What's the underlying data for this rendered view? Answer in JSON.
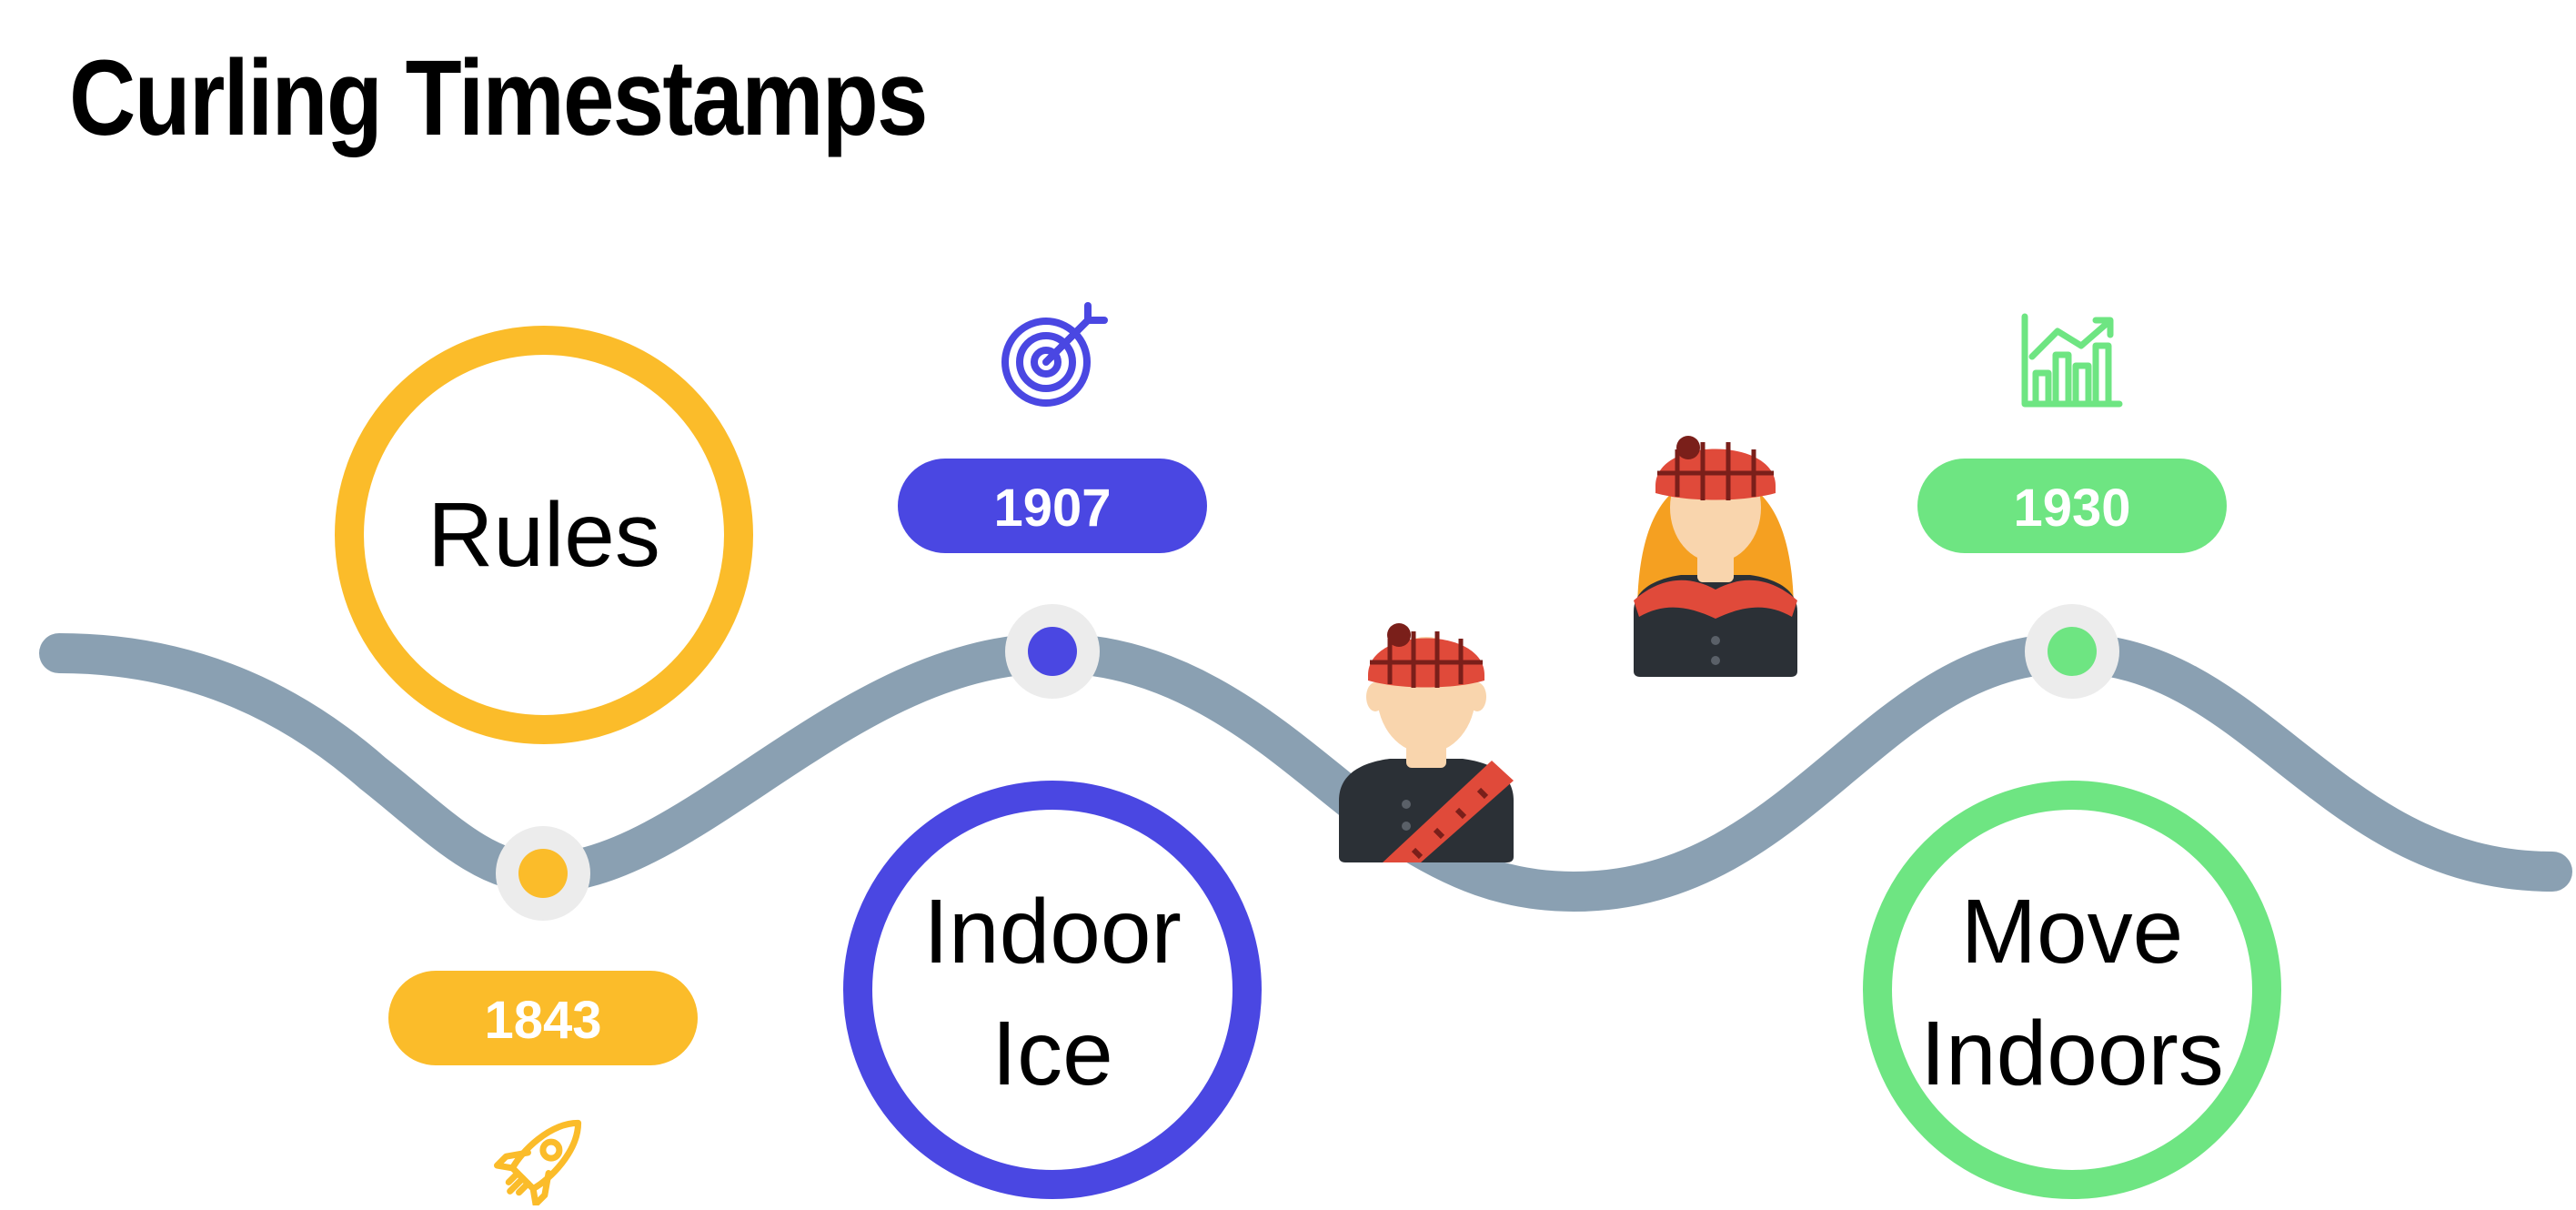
{
  "title": "Curling Timestamps",
  "colors": {
    "track": "#8aa0b2",
    "node_ring": "#ececec",
    "yellow": "#fbbc2a",
    "blue": "#4a47e2",
    "green": "#6ee582",
    "hat_red": "#e04a3a",
    "hat_dark": "#7a1f1a",
    "skin": "#f9d5ad",
    "coat": "#2b3036",
    "hair": "#f5a021"
  },
  "milestones": [
    {
      "year": "1843",
      "label": [
        "Rules"
      ],
      "icon": "rocket-icon",
      "color": "#fbbc2a"
    },
    {
      "year": "1907",
      "label": [
        "Indoor",
        "Ice"
      ],
      "icon": "target-icon",
      "color": "#4a47e2"
    },
    {
      "year": "1930",
      "label": [
        "Move",
        "Indoors"
      ],
      "icon": "growth-chart-icon",
      "color": "#6ee582"
    }
  ],
  "characters": [
    {
      "name": "scottish-man-avatar"
    },
    {
      "name": "scottish-woman-avatar"
    }
  ]
}
